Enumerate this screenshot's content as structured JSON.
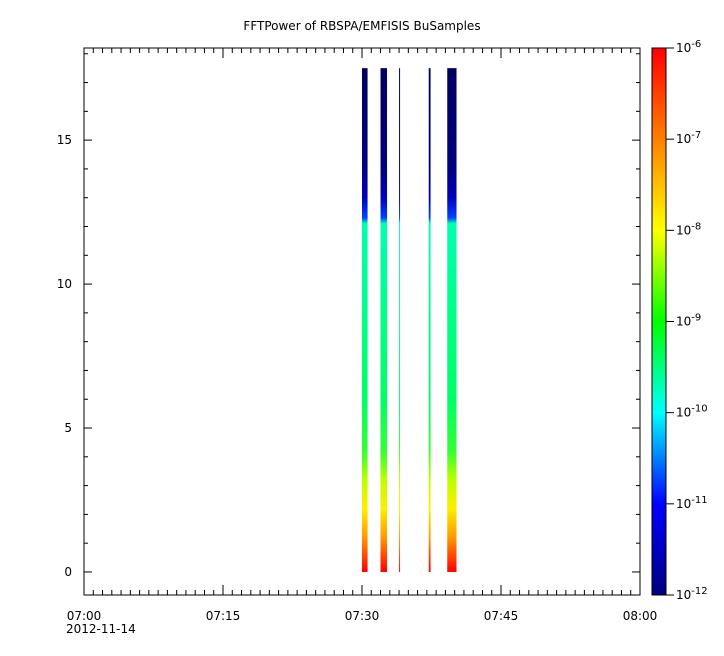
{
  "chart_data": {
    "type": "heatmap",
    "title": "FFTPower of RBSPA/EMFISIS  BuSamples",
    "xlabel": "",
    "ylabel": "",
    "x_ticks": [
      "07:00",
      "07:15",
      "07:30",
      "07:45",
      "08:00"
    ],
    "x_date_label": "2012-11-14",
    "xlim": [
      "07:00",
      "08:00"
    ],
    "ylim": [
      -0.8,
      18.2
    ],
    "y_ticks": [
      0,
      5,
      10,
      15
    ],
    "colorbar": {
      "scale": "log",
      "range": [
        1e-12,
        1e-06
      ],
      "ticks": [
        {
          "value": 1e-06,
          "base": "10",
          "exp": "-6"
        },
        {
          "value": 1e-07,
          "base": "10",
          "exp": "-7"
        },
        {
          "value": 1e-08,
          "base": "10",
          "exp": "-8"
        },
        {
          "value": 1e-09,
          "base": "10",
          "exp": "-9"
        },
        {
          "value": 1e-10,
          "base": "10",
          "exp": "-10"
        },
        {
          "value": 1e-11,
          "base": "10",
          "exp": "-11"
        },
        {
          "value": 1e-12,
          "base": "10",
          "exp": "-12"
        }
      ],
      "colors": [
        "#000080",
        "#0000ff",
        "#00ffff",
        "#00ff00",
        "#ffff00",
        "#ff8000",
        "#ff0000"
      ]
    },
    "intervals": [
      {
        "start": "07:30.0",
        "end": "07:30.6"
      },
      {
        "start": "07:32.0",
        "end": "07:32.7"
      },
      {
        "start": "07:34.0",
        "end": "07:34.1"
      },
      {
        "start": "07:37.2",
        "end": "07:37.4"
      },
      {
        "start": "07:39.2",
        "end": "07:40.2"
      }
    ],
    "frequency_top": 17.5,
    "profile": [
      {
        "y": 0.0,
        "color": "#ff0000"
      },
      {
        "y": 0.5,
        "color": "#ff4000"
      },
      {
        "y": 1.2,
        "color": "#ff9900"
      },
      {
        "y": 2.2,
        "color": "#ffee00"
      },
      {
        "y": 3.2,
        "color": "#bbff00"
      },
      {
        "y": 4.2,
        "color": "#33ff33"
      },
      {
        "y": 6.0,
        "color": "#00ff66"
      },
      {
        "y": 9.0,
        "color": "#00ff88"
      },
      {
        "y": 12.1,
        "color": "#00ffb0"
      },
      {
        "y": 12.3,
        "color": "#0044ff"
      },
      {
        "y": 13.0,
        "color": "#0000bb"
      },
      {
        "y": 14.0,
        "color": "#000080"
      },
      {
        "y": 17.5,
        "color": "#000060"
      }
    ]
  }
}
